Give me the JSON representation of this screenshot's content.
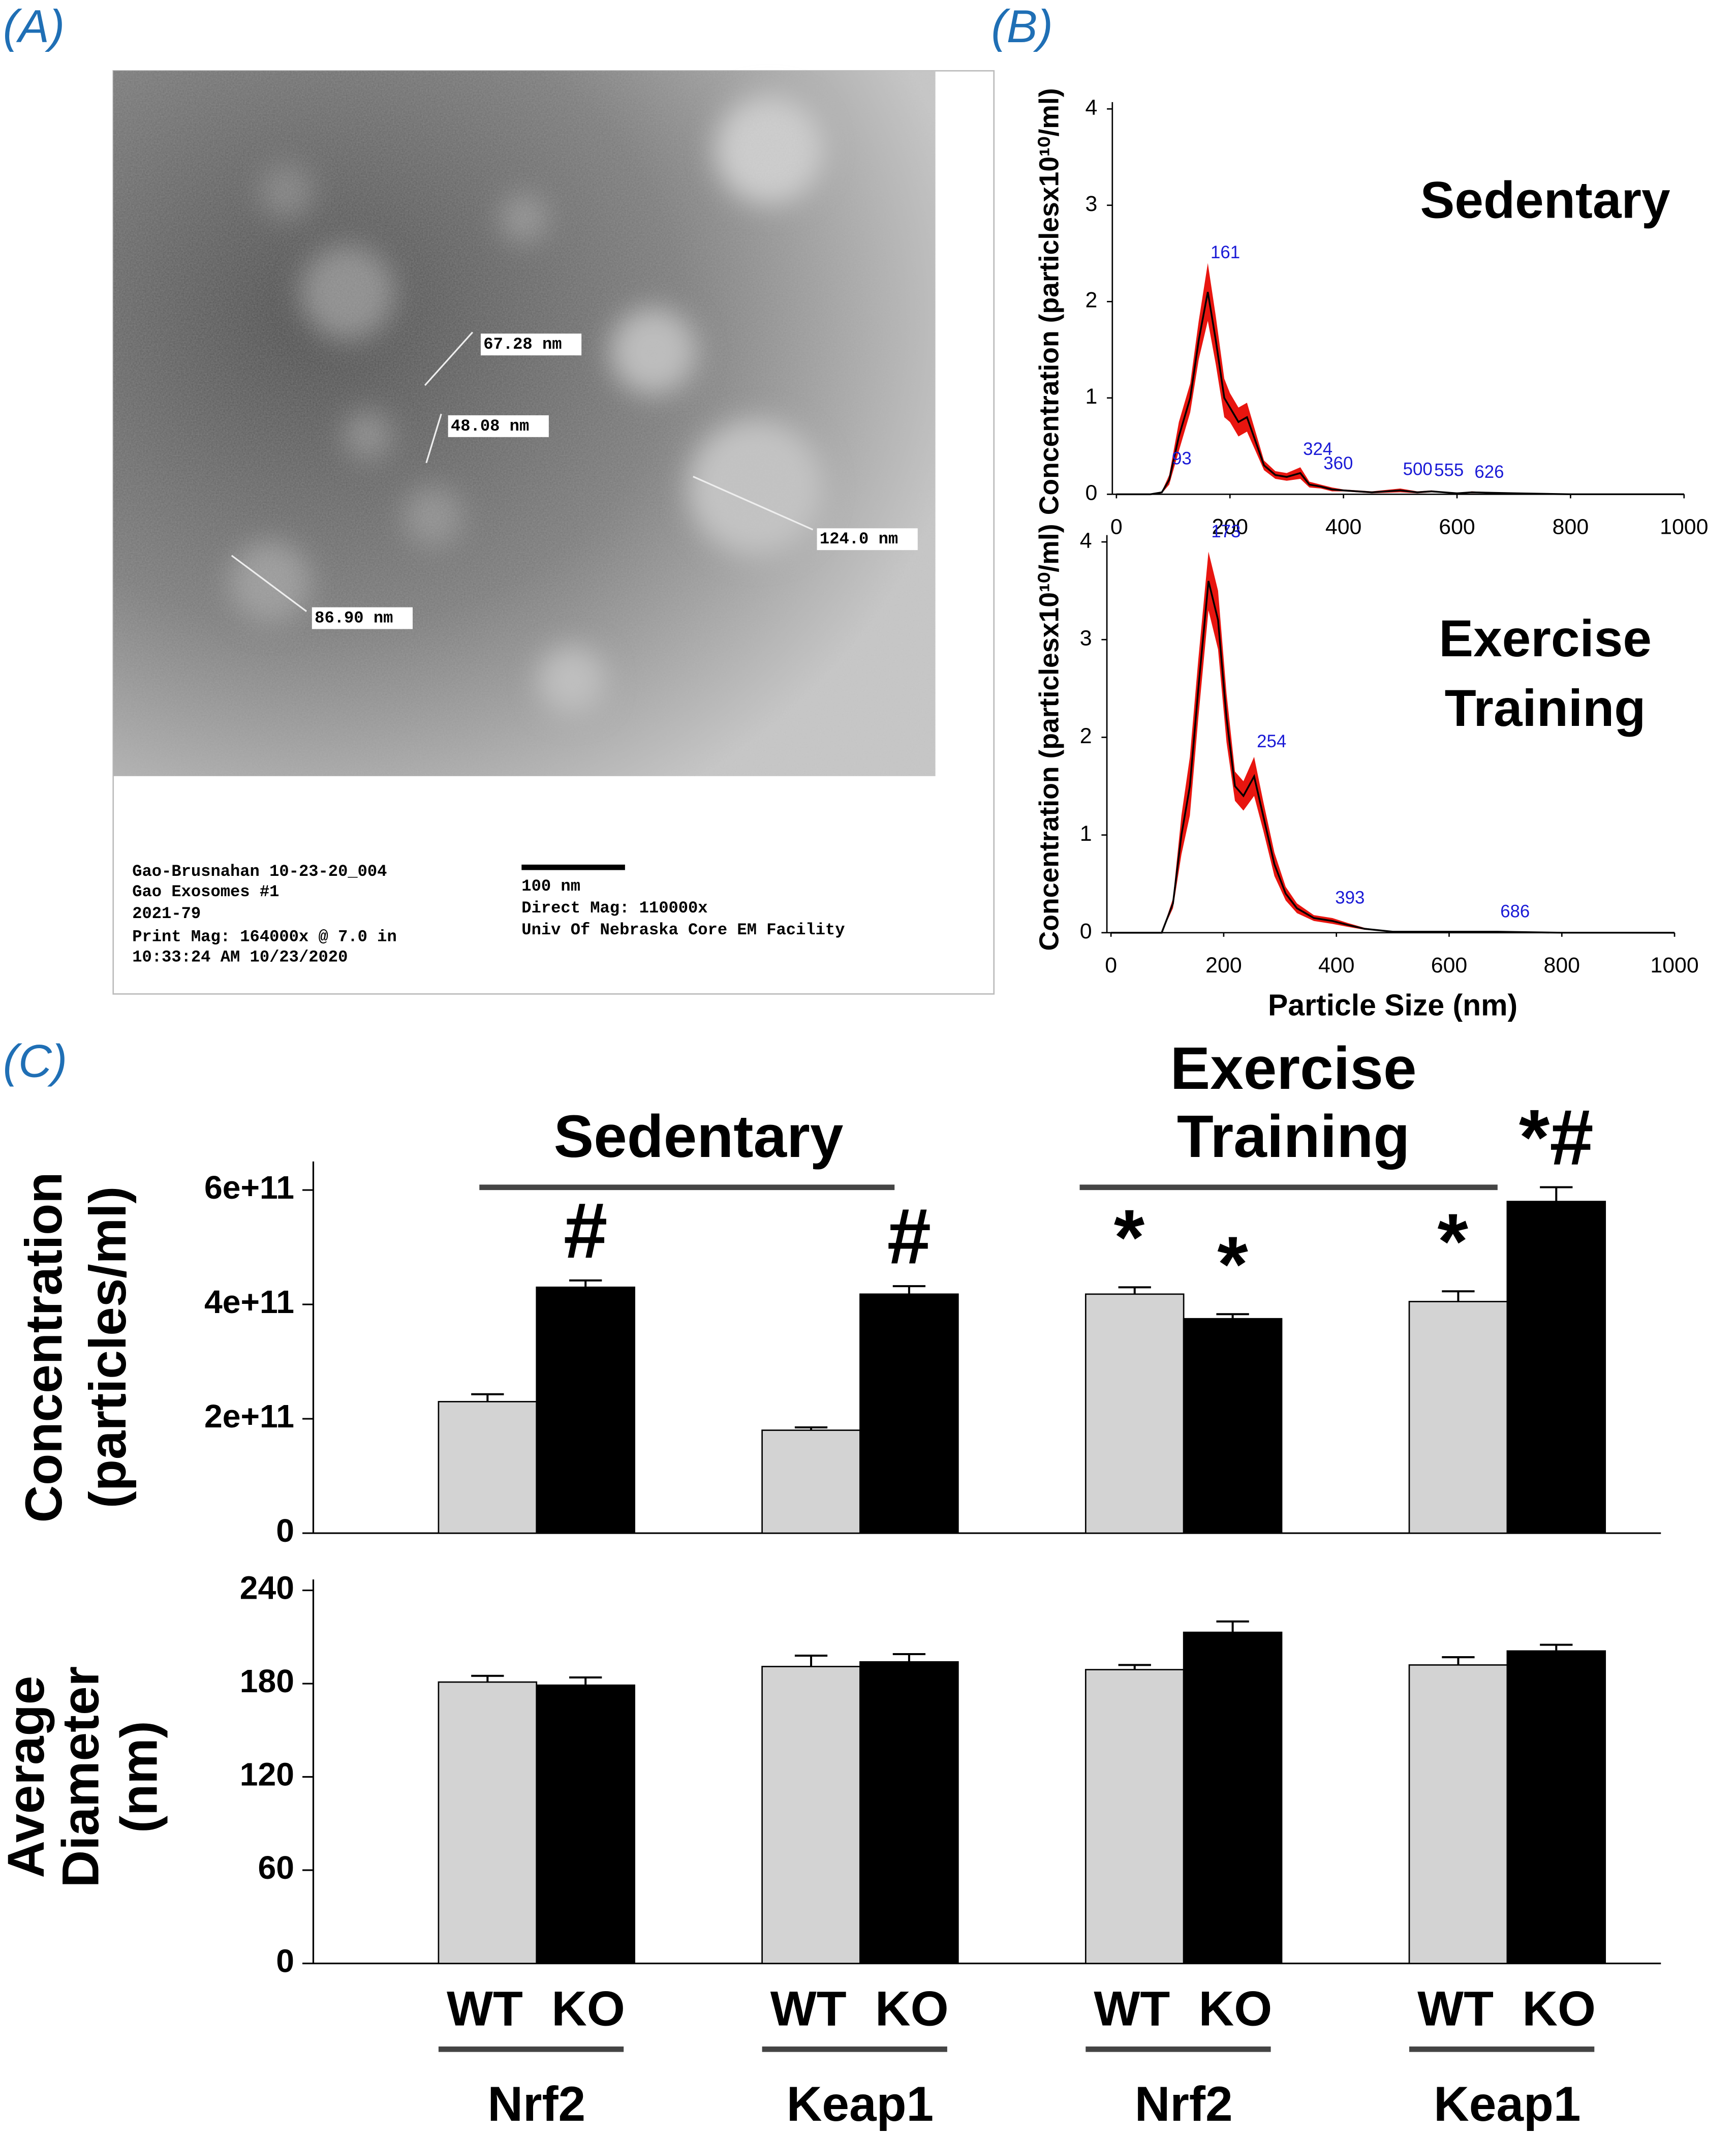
{
  "panel_labels": [
    "(A)",
    "(B)",
    "(C)"
  ],
  "micrograph": {
    "measurements": [
      "67.28 nm",
      "48.08 nm",
      "124.0 nm",
      "86.90 nm"
    ],
    "caption_left": [
      "Gao-Brusnahan 10-23-20_004",
      "Gao Exosomes #1",
      "2021-79",
      "Print Mag:  164000x @ 7.0 in",
      "10:33:24 AM 10/23/2020"
    ],
    "caption_right": [
      "100 nm",
      "Direct Mag: 110000x",
      "Univ Of Nebraska Core EM Facility"
    ]
  },
  "chart_data": [
    {
      "type": "line",
      "title": [
        "Sedentary"
      ],
      "ylabel": "Concentration (particlesx10¹⁰/ml)",
      "x": [
        0,
        60,
        80,
        93,
        110,
        130,
        145,
        161,
        175,
        190,
        200,
        215,
        230,
        245,
        260,
        280,
        300,
        324,
        340,
        360,
        380,
        400,
        450,
        500,
        530,
        555,
        600,
        626,
        700,
        800,
        1000
      ],
      "values": [
        0,
        0,
        0.02,
        0.15,
        0.6,
        1.0,
        1.6,
        2.1,
        1.6,
        1.0,
        0.9,
        0.75,
        0.8,
        0.55,
        0.3,
        0.2,
        0.18,
        0.22,
        0.1,
        0.08,
        0.05,
        0.04,
        0.02,
        0.04,
        0.02,
        0.03,
        0.01,
        0.02,
        0.01,
        0,
        0
      ],
      "errors": [
        0,
        0,
        0.01,
        0.05,
        0.15,
        0.15,
        0.2,
        0.3,
        0.25,
        0.2,
        0.15,
        0.15,
        0.15,
        0.1,
        0.05,
        0.04,
        0.04,
        0.06,
        0.03,
        0.02,
        0.02,
        0.01,
        0.01,
        0.02,
        0.01,
        0.01,
        0,
        0.01,
        0,
        0,
        0
      ],
      "color": "#000000",
      "band_color": "#e8150f",
      "peak_color": "#1a1ad6",
      "peaks": [
        93,
        161,
        324,
        360,
        500,
        555,
        626
      ],
      "xlim": [
        0,
        1000
      ],
      "xticks": [
        0,
        200,
        400,
        600,
        800,
        1000
      ],
      "ylim": [
        0,
        4
      ],
      "yticks": [
        0,
        1,
        2,
        3,
        4
      ]
    },
    {
      "type": "line",
      "title": [
        "Exercise",
        "Training"
      ],
      "ylabel": "Concentration (particlesx10¹⁰/ml)",
      "xlabel": "Particle Size (nm)",
      "x": [
        0,
        90,
        110,
        125,
        140,
        155,
        173,
        190,
        205,
        220,
        235,
        254,
        270,
        290,
        310,
        330,
        360,
        393,
        420,
        450,
        500,
        550,
        600,
        686,
        800,
        1000
      ],
      "values": [
        0,
        0,
        0.3,
        1.0,
        1.5,
        2.5,
        3.6,
        3.2,
        2.2,
        1.5,
        1.4,
        1.6,
        1.2,
        0.7,
        0.4,
        0.25,
        0.15,
        0.12,
        0.08,
        0.04,
        0.01,
        0.01,
        0.01,
        0.01,
        0,
        0
      ],
      "errors": [
        0,
        0,
        0.05,
        0.2,
        0.3,
        0.3,
        0.3,
        0.3,
        0.25,
        0.15,
        0.15,
        0.2,
        0.15,
        0.12,
        0.07,
        0.05,
        0.03,
        0.03,
        0.02,
        0.01,
        0,
        0,
        0,
        0,
        0,
        0
      ],
      "color": "#000000",
      "band_color": "#e8150f",
      "peak_color": "#1a1ad6",
      "peaks": [
        173,
        254,
        393,
        686
      ],
      "xlim": [
        0,
        1000
      ],
      "xticks": [
        0,
        200,
        400,
        600,
        800,
        1000
      ],
      "ylim": [
        0,
        4
      ],
      "yticks": [
        0,
        1,
        2,
        3,
        4
      ]
    },
    {
      "type": "bar",
      "ylabel": [
        "Concentration",
        "(particles/ml)"
      ],
      "conditions": [
        [
          "Sedentary"
        ],
        [
          "Exercise",
          "Training"
        ]
      ],
      "series": [
        {
          "name": "WT",
          "color": "#d3d3d3",
          "values": [
            230000000000,
            180000000000,
            418000000000,
            405000000000
          ],
          "errors": [
            13000000000,
            5000000000,
            12000000000,
            18000000000
          ],
          "marks": [
            null,
            null,
            "*",
            "*"
          ]
        },
        {
          "name": "KO",
          "color": "#000000",
          "values": [
            430000000000,
            418000000000,
            375000000000,
            580000000000
          ],
          "errors": [
            12000000000,
            14000000000,
            8000000000,
            25000000000
          ],
          "marks": [
            "#",
            "#",
            "*",
            "*#"
          ]
        }
      ],
      "ylim": [
        0,
        650000000000
      ],
      "yticks": [
        0,
        {
          "value": 200000000000,
          "label": "2e+11"
        },
        {
          "value": 400000000000,
          "label": "4e+11"
        },
        {
          "value": 600000000000,
          "label": "6e+11"
        }
      ]
    },
    {
      "type": "bar",
      "ylabel": [
        "Average",
        "Diameter",
        "(nm)"
      ],
      "groups": [
        "Nrf2",
        "Keap1",
        "Nrf2",
        "Keap1"
      ],
      "series": [
        {
          "name": "WT",
          "color": "#d3d3d3",
          "values": [
            181,
            191,
            189,
            192
          ],
          "errors": [
            4,
            7,
            3,
            5
          ]
        },
        {
          "name": "KO",
          "color": "#000000",
          "values": [
            179,
            194,
            213,
            201
          ],
          "errors": [
            5,
            5,
            7,
            4
          ]
        }
      ],
      "ylim": [
        0,
        240
      ],
      "yticks": [
        0,
        60,
        120,
        180,
        240
      ]
    }
  ]
}
